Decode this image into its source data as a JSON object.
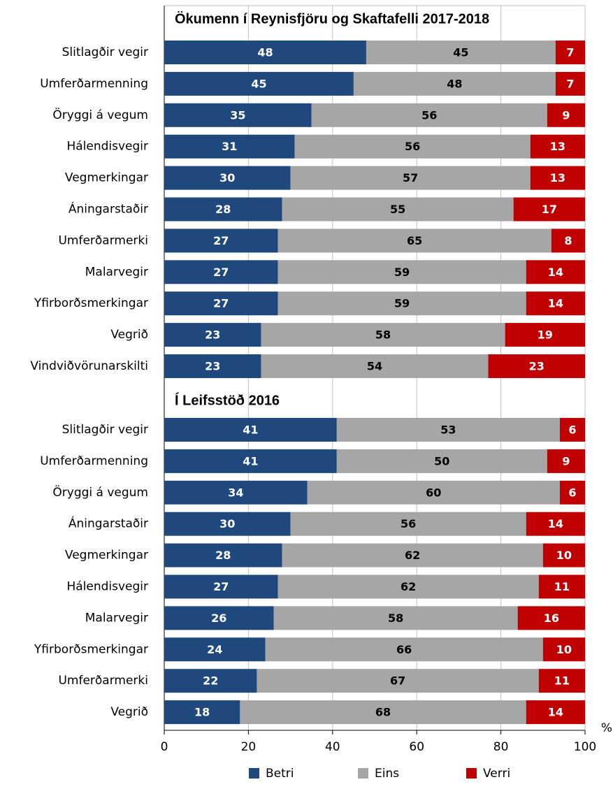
{
  "chart_data": {
    "type": "bar",
    "orientation": "horizontal",
    "stacked": true,
    "xlabel": "%",
    "xlim": [
      0,
      100
    ],
    "xticks": [
      0,
      20,
      40,
      60,
      80,
      100
    ],
    "grid": true,
    "legend": "bottom",
    "panels": [
      {
        "title": "Ökumenn í Reynisfjöru og Skaftafelli 2017-2018",
        "categories": [
          "Slitlagðir vegir",
          "Umferðarmenning",
          "Öryggi á vegum",
          "Hálendisvegir",
          "Vegmerkingar",
          "Áningarstaðir",
          "Umferðarmerki",
          "Malarvegir",
          "Yfirborðsmerkingar",
          "Vegrið",
          "Vindviðvörunarskilti"
        ],
        "series": [
          {
            "name": "Betri",
            "color": "#1f497d",
            "values": [
              48,
              45,
              35,
              31,
              30,
              28,
              27,
              27,
              27,
              23,
              23
            ]
          },
          {
            "name": "Eins",
            "color": "#a6a6a6",
            "values": [
              45,
              48,
              56,
              56,
              57,
              55,
              65,
              59,
              59,
              58,
              54
            ]
          },
          {
            "name": "Verri",
            "color": "#c00000",
            "values": [
              7,
              7,
              9,
              13,
              13,
              17,
              8,
              14,
              14,
              19,
              23
            ]
          }
        ]
      },
      {
        "title": "Í Leifsstöð 2016",
        "categories": [
          "Slitlagðir vegir",
          "Umferðarmenning",
          "Öryggi á vegum",
          "Áningarstaðir",
          "Vegmerkingar",
          "Hálendisvegir",
          "Malarvegir",
          "Yfirborðsmerkingar",
          "Umferðarmerki",
          "Vegrið"
        ],
        "series": [
          {
            "name": "Betri",
            "color": "#1f497d",
            "values": [
              41,
              41,
              34,
              30,
              28,
              27,
              26,
              24,
              22,
              18
            ]
          },
          {
            "name": "Eins",
            "color": "#a6a6a6",
            "values": [
              53,
              50,
              60,
              56,
              62,
              62,
              58,
              66,
              67,
              68
            ]
          },
          {
            "name": "Verri",
            "color": "#c00000",
            "values": [
              6,
              9,
              6,
              14,
              10,
              11,
              16,
              10,
              11,
              14
            ]
          }
        ]
      }
    ]
  }
}
